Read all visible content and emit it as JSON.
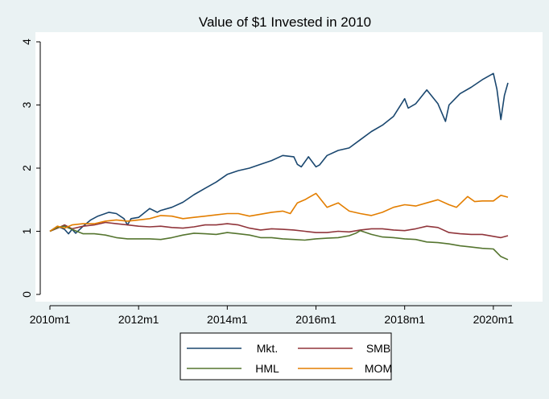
{
  "chart_data": {
    "type": "line",
    "title": "Value of $1 Invested in 2010",
    "xlabel": "",
    "ylabel": "",
    "x_range": [
      2010.0,
      2020.42
    ],
    "ylim": [
      0,
      4
    ],
    "y_ticks": [
      "0",
      "1",
      "2",
      "3",
      "4"
    ],
    "x_tick_values": [
      2010,
      2012,
      2014,
      2016,
      2018,
      2020
    ],
    "x_ticks": [
      "2010m1",
      "2012m1",
      "2014m1",
      "2016m1",
      "2018m1",
      "2020m1"
    ],
    "grid": false,
    "legend": "bottom",
    "series": [
      {
        "name": "Mkt.",
        "color": "#1a476f",
        "points": [
          [
            2010.0,
            1.0
          ],
          [
            2010.17,
            1.08
          ],
          [
            2010.33,
            1.03
          ],
          [
            2010.42,
            0.96
          ],
          [
            2010.5,
            1.03
          ],
          [
            2010.58,
            0.97
          ],
          [
            2010.75,
            1.08
          ],
          [
            2010.92,
            1.18
          ],
          [
            2011.08,
            1.24
          ],
          [
            2011.33,
            1.3
          ],
          [
            2011.5,
            1.28
          ],
          [
            2011.67,
            1.2
          ],
          [
            2011.75,
            1.1
          ],
          [
            2011.83,
            1.2
          ],
          [
            2012.0,
            1.22
          ],
          [
            2012.25,
            1.36
          ],
          [
            2012.42,
            1.3
          ],
          [
            2012.5,
            1.33
          ],
          [
            2012.75,
            1.38
          ],
          [
            2013.0,
            1.46
          ],
          [
            2013.25,
            1.58
          ],
          [
            2013.5,
            1.68
          ],
          [
            2013.75,
            1.78
          ],
          [
            2014.0,
            1.9
          ],
          [
            2014.25,
            1.96
          ],
          [
            2014.5,
            2.0
          ],
          [
            2014.75,
            2.06
          ],
          [
            2015.0,
            2.12
          ],
          [
            2015.25,
            2.2
          ],
          [
            2015.5,
            2.18
          ],
          [
            2015.58,
            2.06
          ],
          [
            2015.67,
            2.02
          ],
          [
            2015.83,
            2.18
          ],
          [
            2016.0,
            2.02
          ],
          [
            2016.08,
            2.05
          ],
          [
            2016.25,
            2.2
          ],
          [
            2016.5,
            2.28
          ],
          [
            2016.75,
            2.32
          ],
          [
            2017.0,
            2.45
          ],
          [
            2017.25,
            2.58
          ],
          [
            2017.5,
            2.68
          ],
          [
            2017.75,
            2.82
          ],
          [
            2018.0,
            3.1
          ],
          [
            2018.08,
            2.95
          ],
          [
            2018.25,
            3.02
          ],
          [
            2018.5,
            3.24
          ],
          [
            2018.75,
            3.02
          ],
          [
            2018.92,
            2.74
          ],
          [
            2019.0,
            3.0
          ],
          [
            2019.25,
            3.18
          ],
          [
            2019.5,
            3.28
          ],
          [
            2019.75,
            3.4
          ],
          [
            2020.0,
            3.5
          ],
          [
            2020.08,
            3.25
          ],
          [
            2020.17,
            2.77
          ],
          [
            2020.25,
            3.15
          ],
          [
            2020.33,
            3.35
          ]
        ]
      },
      {
        "name": "SMB",
        "color": "#90353b",
        "points": [
          [
            2010.0,
            1.0
          ],
          [
            2010.17,
            1.05
          ],
          [
            2010.33,
            1.1
          ],
          [
            2010.5,
            1.04
          ],
          [
            2010.75,
            1.08
          ],
          [
            2011.0,
            1.1
          ],
          [
            2011.25,
            1.14
          ],
          [
            2011.5,
            1.12
          ],
          [
            2011.75,
            1.1
          ],
          [
            2012.0,
            1.08
          ],
          [
            2012.25,
            1.07
          ],
          [
            2012.5,
            1.08
          ],
          [
            2012.75,
            1.06
          ],
          [
            2013.0,
            1.05
          ],
          [
            2013.25,
            1.07
          ],
          [
            2013.5,
            1.1
          ],
          [
            2013.75,
            1.1
          ],
          [
            2014.0,
            1.12
          ],
          [
            2014.25,
            1.1
          ],
          [
            2014.5,
            1.05
          ],
          [
            2014.75,
            1.02
          ],
          [
            2015.0,
            1.04
          ],
          [
            2015.25,
            1.03
          ],
          [
            2015.5,
            1.02
          ],
          [
            2015.75,
            1.0
          ],
          [
            2016.0,
            0.98
          ],
          [
            2016.25,
            0.98
          ],
          [
            2016.5,
            1.0
          ],
          [
            2016.75,
            0.99
          ],
          [
            2017.0,
            1.02
          ],
          [
            2017.25,
            1.04
          ],
          [
            2017.5,
            1.04
          ],
          [
            2017.75,
            1.02
          ],
          [
            2018.0,
            1.01
          ],
          [
            2018.25,
            1.04
          ],
          [
            2018.5,
            1.08
          ],
          [
            2018.75,
            1.06
          ],
          [
            2019.0,
            0.98
          ],
          [
            2019.25,
            0.96
          ],
          [
            2019.5,
            0.95
          ],
          [
            2019.75,
            0.95
          ],
          [
            2020.0,
            0.92
          ],
          [
            2020.17,
            0.9
          ],
          [
            2020.33,
            0.93
          ]
        ]
      },
      {
        "name": "HML",
        "color": "#55752f",
        "points": [
          [
            2010.0,
            1.0
          ],
          [
            2010.17,
            1.06
          ],
          [
            2010.33,
            1.08
          ],
          [
            2010.5,
            1.03
          ],
          [
            2010.75,
            0.96
          ],
          [
            2011.0,
            0.96
          ],
          [
            2011.25,
            0.94
          ],
          [
            2011.5,
            0.9
          ],
          [
            2011.75,
            0.88
          ],
          [
            2012.0,
            0.88
          ],
          [
            2012.25,
            0.88
          ],
          [
            2012.5,
            0.87
          ],
          [
            2012.75,
            0.9
          ],
          [
            2013.0,
            0.94
          ],
          [
            2013.25,
            0.97
          ],
          [
            2013.5,
            0.96
          ],
          [
            2013.75,
            0.95
          ],
          [
            2014.0,
            0.98
          ],
          [
            2014.25,
            0.96
          ],
          [
            2014.5,
            0.94
          ],
          [
            2014.75,
            0.9
          ],
          [
            2015.0,
            0.9
          ],
          [
            2015.25,
            0.88
          ],
          [
            2015.5,
            0.87
          ],
          [
            2015.75,
            0.86
          ],
          [
            2016.0,
            0.88
          ],
          [
            2016.25,
            0.89
          ],
          [
            2016.5,
            0.9
          ],
          [
            2016.75,
            0.93
          ],
          [
            2016.9,
            0.97
          ],
          [
            2017.0,
            1.01
          ],
          [
            2017.25,
            0.95
          ],
          [
            2017.5,
            0.91
          ],
          [
            2017.75,
            0.9
          ],
          [
            2018.0,
            0.88
          ],
          [
            2018.25,
            0.87
          ],
          [
            2018.5,
            0.83
          ],
          [
            2018.75,
            0.82
          ],
          [
            2019.0,
            0.8
          ],
          [
            2019.25,
            0.77
          ],
          [
            2019.5,
            0.75
          ],
          [
            2019.75,
            0.73
          ],
          [
            2020.0,
            0.72
          ],
          [
            2020.17,
            0.6
          ],
          [
            2020.33,
            0.55
          ]
        ]
      },
      {
        "name": "MOM",
        "color": "#e37e00",
        "points": [
          [
            2010.0,
            1.0
          ],
          [
            2010.17,
            1.08
          ],
          [
            2010.33,
            1.05
          ],
          [
            2010.5,
            1.1
          ],
          [
            2010.75,
            1.12
          ],
          [
            2011.0,
            1.12
          ],
          [
            2011.25,
            1.16
          ],
          [
            2011.5,
            1.18
          ],
          [
            2011.75,
            1.16
          ],
          [
            2012.0,
            1.18
          ],
          [
            2012.25,
            1.2
          ],
          [
            2012.5,
            1.25
          ],
          [
            2012.75,
            1.24
          ],
          [
            2013.0,
            1.2
          ],
          [
            2013.25,
            1.22
          ],
          [
            2013.5,
            1.24
          ],
          [
            2013.75,
            1.26
          ],
          [
            2014.0,
            1.28
          ],
          [
            2014.25,
            1.28
          ],
          [
            2014.5,
            1.24
          ],
          [
            2014.75,
            1.27
          ],
          [
            2015.0,
            1.3
          ],
          [
            2015.25,
            1.32
          ],
          [
            2015.42,
            1.28
          ],
          [
            2015.58,
            1.45
          ],
          [
            2015.75,
            1.5
          ],
          [
            2016.0,
            1.6
          ],
          [
            2016.25,
            1.38
          ],
          [
            2016.5,
            1.45
          ],
          [
            2016.75,
            1.32
          ],
          [
            2017.0,
            1.28
          ],
          [
            2017.25,
            1.25
          ],
          [
            2017.5,
            1.3
          ],
          [
            2017.75,
            1.38
          ],
          [
            2018.0,
            1.42
          ],
          [
            2018.25,
            1.4
          ],
          [
            2018.5,
            1.45
          ],
          [
            2018.75,
            1.5
          ],
          [
            2019.0,
            1.42
          ],
          [
            2019.17,
            1.38
          ],
          [
            2019.42,
            1.55
          ],
          [
            2019.58,
            1.47
          ],
          [
            2019.75,
            1.48
          ],
          [
            2020.0,
            1.48
          ],
          [
            2020.17,
            1.57
          ],
          [
            2020.33,
            1.54
          ]
        ]
      }
    ]
  }
}
